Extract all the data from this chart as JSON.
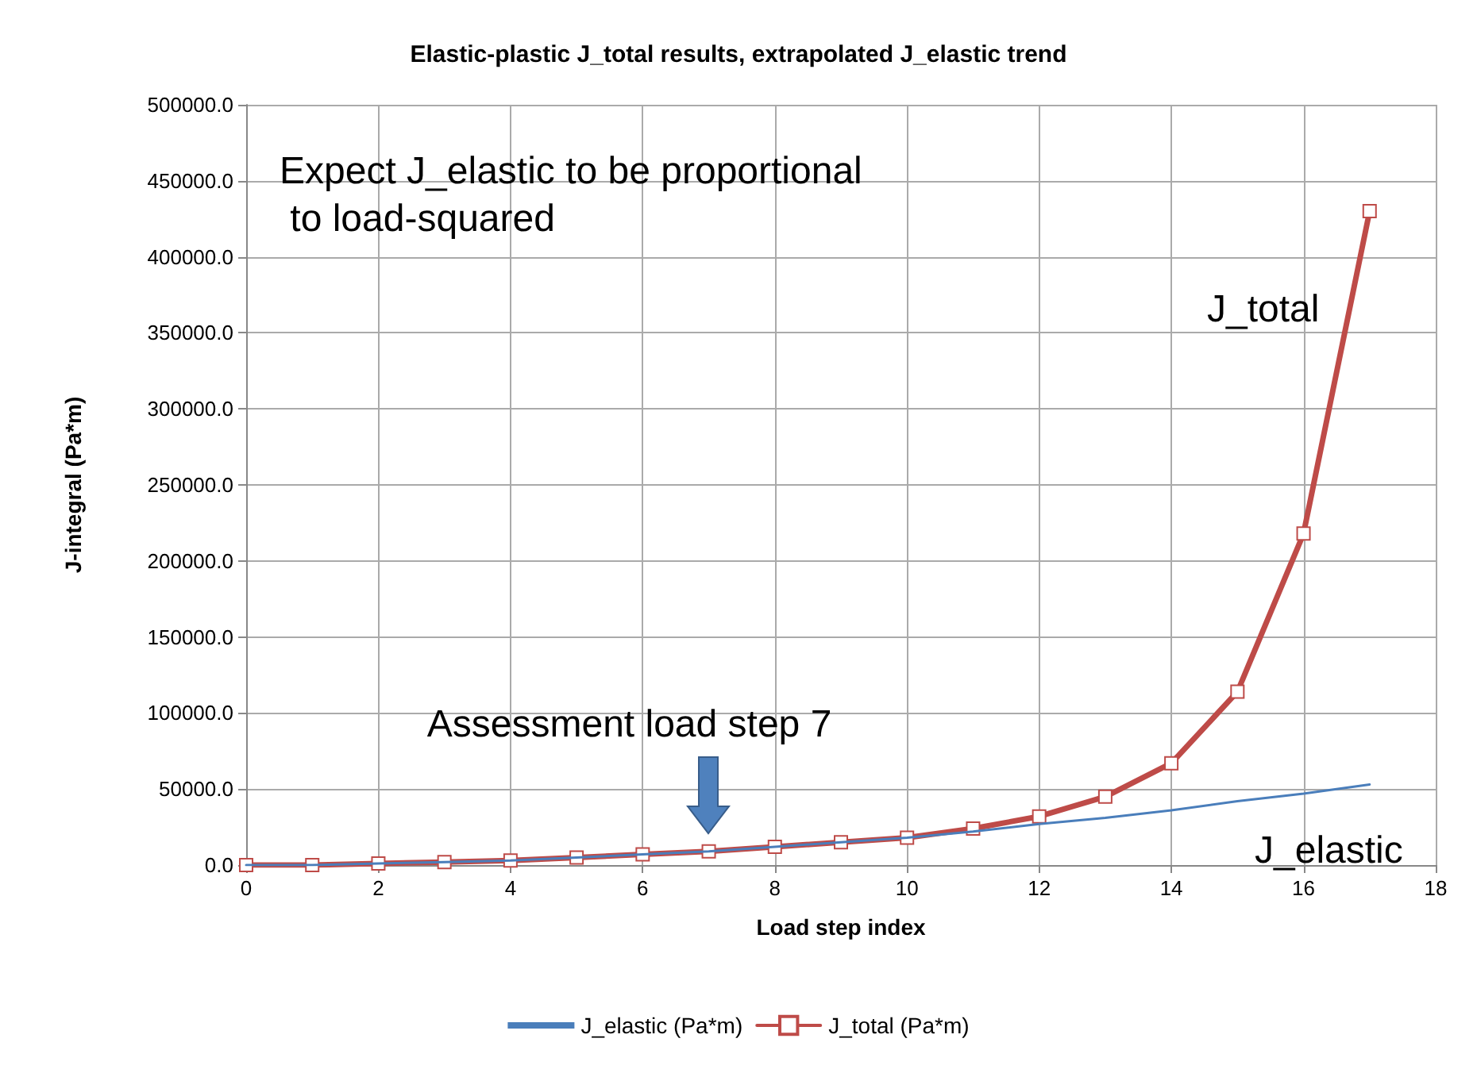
{
  "chart_data": {
    "type": "line",
    "title": "Elastic-plastic J_total results, extrapolated J_elastic trend",
    "xlabel": "Load step index",
    "ylabel": "J-integral (Pa*m)",
    "x": [
      0,
      1,
      2,
      3,
      4,
      5,
      6,
      7,
      8,
      9,
      10,
      11,
      12,
      13,
      14,
      15,
      16,
      17
    ],
    "series": [
      {
        "name": "J_elastic (Pa*m)",
        "color": "#4a7ebb",
        "marker": "none",
        "values": [
          0,
          0,
          1000,
          2000,
          3000,
          5000,
          7000,
          9000,
          12000,
          15000,
          18000,
          22000,
          27000,
          31000,
          36000,
          42000,
          47000,
          53000
        ]
      },
      {
        "name": "J_total (Pa*m)",
        "color": "#be4b48",
        "marker": "square",
        "values": [
          0,
          0,
          1000,
          2000,
          3000,
          5000,
          7000,
          9000,
          12000,
          15000,
          18000,
          24000,
          32000,
          45000,
          67000,
          114000,
          218000,
          430000
        ]
      }
    ],
    "xlim": [
      0,
      18
    ],
    "xticks": [
      0,
      2,
      4,
      6,
      8,
      10,
      12,
      14,
      16,
      18
    ],
    "ylim": [
      0,
      500000
    ],
    "yticks": [
      {
        "value": 0,
        "label": "0.0"
      },
      {
        "value": 50000,
        "label": "50000.0"
      },
      {
        "value": 100000,
        "label": "100000.0"
      },
      {
        "value": 150000,
        "label": "150000.0"
      },
      {
        "value": 200000,
        "label": "200000.0"
      },
      {
        "value": 250000,
        "label": "250000.0"
      },
      {
        "value": 300000,
        "label": "300000.0"
      },
      {
        "value": 350000,
        "label": "350000.0"
      },
      {
        "value": 400000,
        "label": "400000.0"
      },
      {
        "value": 450000,
        "label": "450000.0"
      },
      {
        "value": 500000,
        "label": "500000.0"
      }
    ],
    "annotations": [
      "Expect J_elastic to be proportional to load-squared",
      {
        "text": "Assessment load step 7",
        "x": 7,
        "y": 12000
      },
      "J_total",
      "J_elastic"
    ],
    "grid": true,
    "legend": "bottom",
    "line_style": "solid"
  }
}
